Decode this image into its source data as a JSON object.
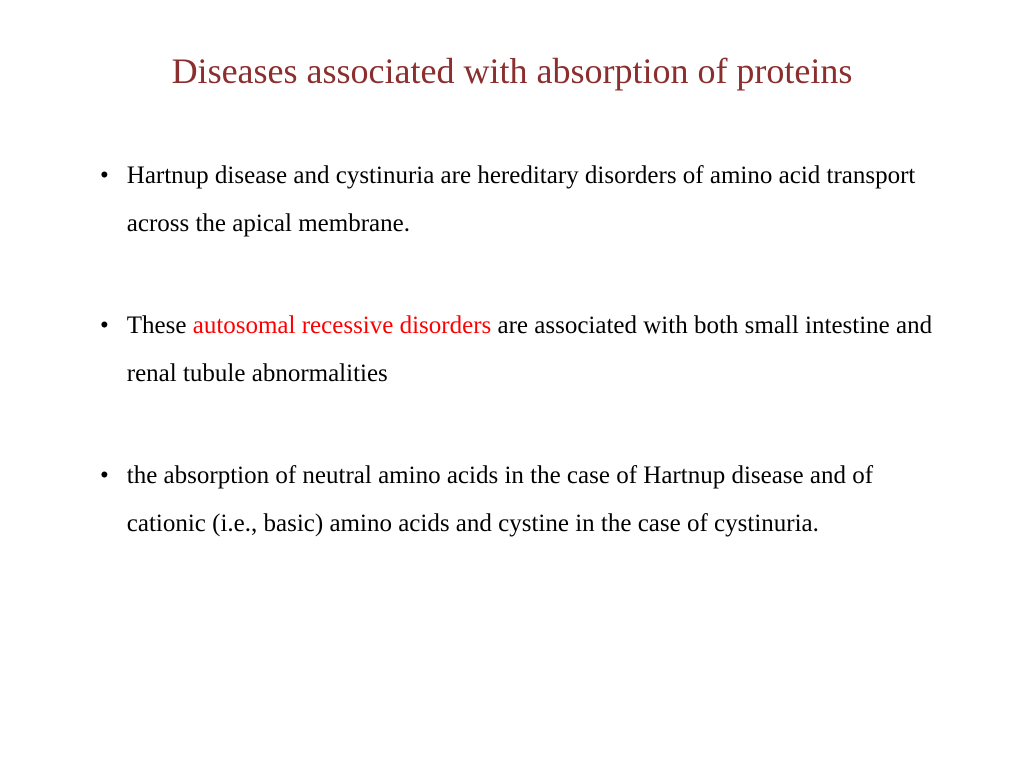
{
  "slide": {
    "title": "Diseases associated with absorption of proteins",
    "title_color": "#8b2e2e",
    "title_fontsize": 36,
    "body_fontsize": 25,
    "body_color": "#000000",
    "highlight_color": "#ff0000",
    "background_color": "#ffffff",
    "bullets": [
      {
        "text_before": "Hartnup disease and cystinuria are hereditary disorders of amino acid transport across the apical membrane.",
        "highlight": "",
        "text_after": ""
      },
      {
        "text_before": "These ",
        "highlight": "autosomal recessive disorders",
        "text_after": " are associated with both small intestine and renal tubule abnormalities"
      },
      {
        "text_before": "the absorption of neutral amino acids in the case of Hartnup disease and of cationic (i.e., basic) amino acids and cystine in the case of cystinuria.",
        "highlight": "",
        "text_after": ""
      }
    ]
  }
}
